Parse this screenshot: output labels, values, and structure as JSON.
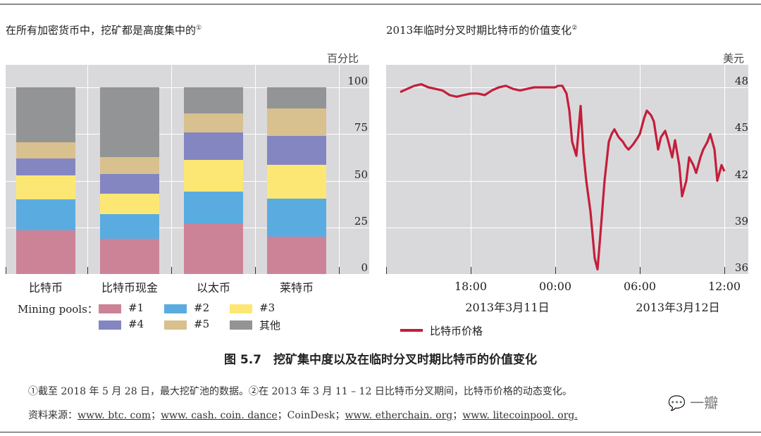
{
  "page": {
    "figure_title": "图 5.7　挖矿集中度以及在临时分叉时期比特币的价值变化",
    "note_line1": "①截至 2018 年 5 月 28 日，最大挖矿池的数据。②在 2013 年 3 月 11 – 12 日比特币分叉期间，比特币价格的动态变化。",
    "sources_label": "资料来源：",
    "sources": [
      "www. btc. com",
      "www. cash. coin. dance",
      "CoinDesk",
      "www. etherchain. org",
      "www. litecoinpool. org."
    ],
    "watermark": "一瓣"
  },
  "left": {
    "title": "在所有加密货币中，挖矿都是高度集中的",
    "title_sup": "①",
    "unit": "百分比",
    "legend_title": "Mining pools：",
    "legend": [
      {
        "label": "#1",
        "color": "#cd8397"
      },
      {
        "label": "#2",
        "color": "#5aace0"
      },
      {
        "label": "#3",
        "color": "#fde774"
      },
      {
        "label": "#4",
        "color": "#8486c2"
      },
      {
        "label": "#5",
        "color": "#d9c08f"
      },
      {
        "label": "其他",
        "color": "#939496"
      }
    ]
  },
  "right": {
    "title": "2013年临时分叉时期比特币的价值变化",
    "title_sup": "②",
    "unit": "美元",
    "legend_label": "比特币价格",
    "line_color": "#c41e3a",
    "date_labels": [
      "2013年3月11日",
      "2013年3月12日"
    ]
  },
  "chart_data": [
    {
      "type": "bar",
      "stacked": true,
      "title": "在所有加密货币中，挖矿都是高度集中的①",
      "ylabel": "百分比",
      "ylim": [
        0,
        100
      ],
      "yticks": [
        0,
        25,
        50,
        75,
        100
      ],
      "categories": [
        "比特币",
        "比特币现金",
        "以太币",
        "莱特币"
      ],
      "series": [
        {
          "name": "#1",
          "values": [
            23.5,
            19,
            27,
            20
          ]
        },
        {
          "name": "#2",
          "values": [
            16.5,
            13,
            17,
            20.5
          ]
        },
        {
          "name": "#3",
          "values": [
            13,
            11,
            17,
            18
          ]
        },
        {
          "name": "#4",
          "values": [
            9,
            10.5,
            15,
            15.5
          ]
        },
        {
          "name": "#5",
          "values": [
            8.5,
            9,
            10,
            14.5
          ]
        },
        {
          "name": "其他",
          "values": [
            29.5,
            37.5,
            14,
            11.5
          ]
        }
      ],
      "legend_position": "bottom",
      "grid": true
    },
    {
      "type": "line",
      "title": "2013年临时分叉时期比特币的价值变化②",
      "ylabel": "美元",
      "ylim": [
        36,
        49
      ],
      "yticks": [
        36,
        39,
        42,
        45,
        48
      ],
      "xticks": [
        "18:00",
        "00:00",
        "06:00",
        "12:00"
      ],
      "xlabel_dates": [
        "2013年3月11日",
        "2013年3月12日"
      ],
      "series": [
        {
          "name": "比特币价格",
          "x_hours_from_1800_mar11": [
            -5,
            -4.5,
            -4,
            -3.5,
            -3,
            -2.5,
            -2,
            -1.5,
            -1,
            -0.5,
            0,
            0.5,
            1,
            1.5,
            2,
            2.5,
            3,
            3.5,
            4,
            4.5,
            5,
            5.5,
            6,
            6.2,
            6.5,
            6.8,
            7,
            7.2,
            7.5,
            7.8,
            8,
            8.2,
            8.5,
            8.8,
            9,
            9.2,
            9.5,
            9.8,
            10,
            10.2,
            10.5,
            10.8,
            11,
            11.2,
            11.5,
            11.8,
            12,
            12.3,
            12.5,
            12.8,
            13,
            13.3,
            13.5,
            13.8,
            14,
            14.3,
            14.5,
            14.8,
            15,
            15.3,
            15.5,
            15.8,
            16,
            16.3,
            16.5,
            16.8,
            17,
            17.3,
            17.5,
            17.8,
            18
          ],
          "values": [
            47.7,
            47.9,
            48.1,
            48.2,
            48.0,
            47.9,
            47.8,
            47.5,
            47.4,
            47.5,
            47.6,
            47.6,
            47.5,
            47.8,
            48.0,
            48.1,
            47.9,
            47.8,
            47.9,
            48.0,
            48.0,
            48.0,
            48.0,
            48.1,
            48.1,
            47.6,
            46.5,
            44.5,
            43.6,
            46.8,
            43.8,
            42.0,
            40.0,
            37.0,
            36.3,
            38.5,
            42.0,
            44.5,
            45.0,
            45.3,
            44.8,
            44.5,
            44.2,
            44.0,
            44.3,
            44.7,
            45.0,
            46.0,
            46.5,
            46.2,
            45.8,
            44.0,
            44.8,
            45.2,
            44.6,
            43.5,
            44.6,
            43.0,
            41.0,
            42.0,
            43.5,
            43.0,
            42.5,
            43.5,
            44.0,
            44.5,
            45.0,
            44.0,
            42.0,
            43.0,
            42.6
          ],
          "color": "#c41e3a"
        }
      ],
      "legend_position": "bottom-left",
      "grid": true
    }
  ]
}
